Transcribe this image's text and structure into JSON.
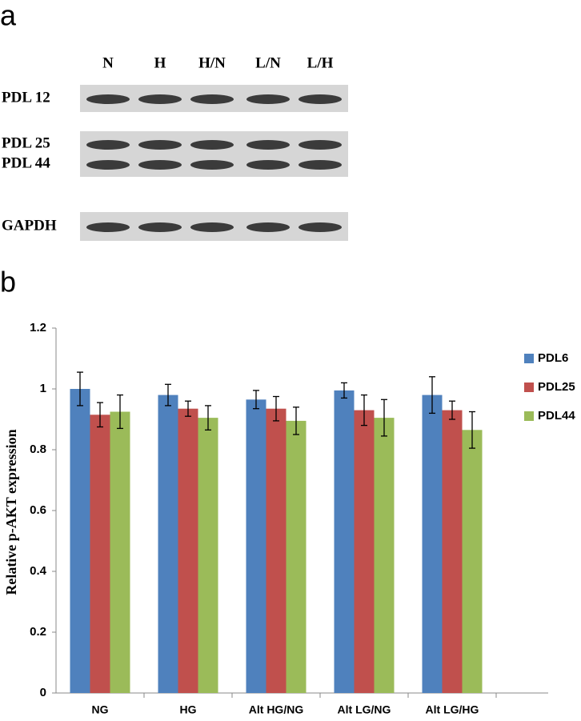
{
  "figure": {
    "panel_a_label": "a",
    "panel_b_label": "b",
    "blot": {
      "lanes": [
        "N",
        "H",
        "H/N",
        "L/N",
        "L/H"
      ],
      "rows": [
        "PDL 12",
        "PDL 25",
        "PDL 44",
        "GAPDH"
      ]
    }
  },
  "chart_data": {
    "type": "bar",
    "ylabel": "Relative p-AKT expression",
    "categories": [
      "NG",
      "HG",
      "Alt HG/NG",
      "Alt LG/NG",
      "Alt LG/HG"
    ],
    "series": [
      {
        "name": "PDL6",
        "color": "#4f81bd",
        "values": [
          1.0,
          0.98,
          0.965,
          0.995,
          0.98
        ],
        "errors": [
          0.055,
          0.035,
          0.03,
          0.025,
          0.06
        ]
      },
      {
        "name": "PDL25",
        "color": "#c0504d",
        "values": [
          0.915,
          0.935,
          0.935,
          0.93,
          0.93
        ],
        "errors": [
          0.04,
          0.025,
          0.04,
          0.05,
          0.03
        ]
      },
      {
        "name": "PDL44",
        "color": "#9bbb59",
        "values": [
          0.925,
          0.905,
          0.895,
          0.905,
          0.865
        ],
        "errors": [
          0.055,
          0.04,
          0.045,
          0.06,
          0.06
        ]
      }
    ],
    "ylim": [
      0,
      1.2
    ],
    "yticks": [
      0,
      0.2,
      0.4,
      0.6,
      0.8,
      1,
      1.2
    ],
    "grid": false,
    "legend": "right"
  }
}
